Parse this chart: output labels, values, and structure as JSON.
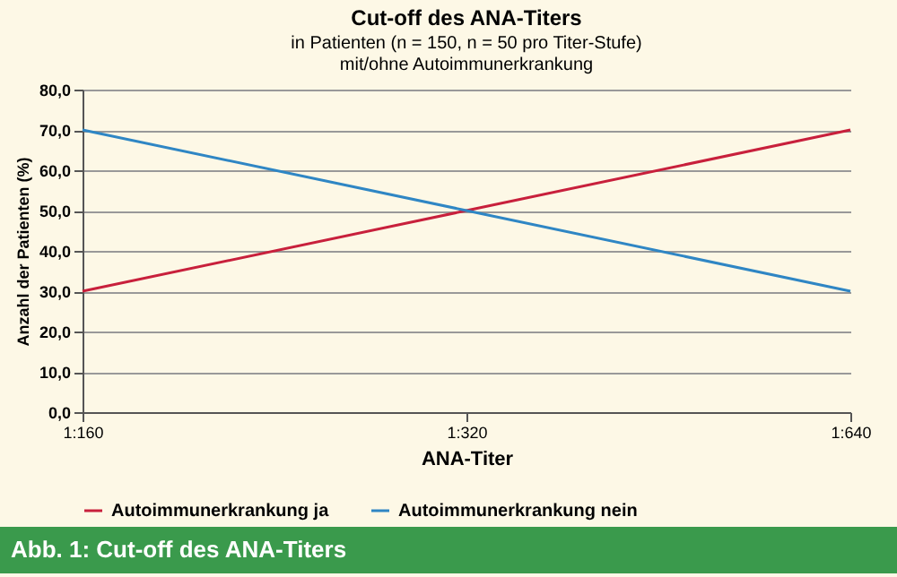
{
  "chart_data": {
    "type": "line",
    "title": "Cut-off des ANA-Titers",
    "subtitle": "in Patienten (n = 150, n = 50 pro Titer-Stufe)\nmit/ohne Autoimmunerkrankung",
    "xlabel": "ANA-Titer",
    "ylabel": "Anzahl der Patienten (%)",
    "categories": [
      "1:160",
      "1:320",
      "1:640"
    ],
    "series": [
      {
        "name": "Autoimmunerkrankung ja",
        "color": "#c8203c",
        "values": [
          30,
          50,
          70
        ]
      },
      {
        "name": "Autoimmunerkrankung nein",
        "color": "#2f86c4",
        "values": [
          70,
          50,
          30
        ]
      }
    ],
    "ylim": [
      0,
      80
    ],
    "yticks": [
      {
        "value": 0,
        "label": "0,0"
      },
      {
        "value": 10,
        "label": "10,0"
      },
      {
        "value": 20,
        "label": "20,0"
      },
      {
        "value": 30,
        "label": "30,0"
      },
      {
        "value": 40,
        "label": "40,0"
      },
      {
        "value": 50,
        "label": "50,0"
      },
      {
        "value": 60,
        "label": "60,0"
      },
      {
        "value": 70,
        "label": "70,0"
      },
      {
        "value": 80,
        "label": "80,0"
      }
    ],
    "grid": "y",
    "legend": "bottom",
    "marker": "none",
    "line_style": "solid",
    "annotations": [
      "Abb. 1: Cut-off des ANA-Titers"
    ]
  }
}
